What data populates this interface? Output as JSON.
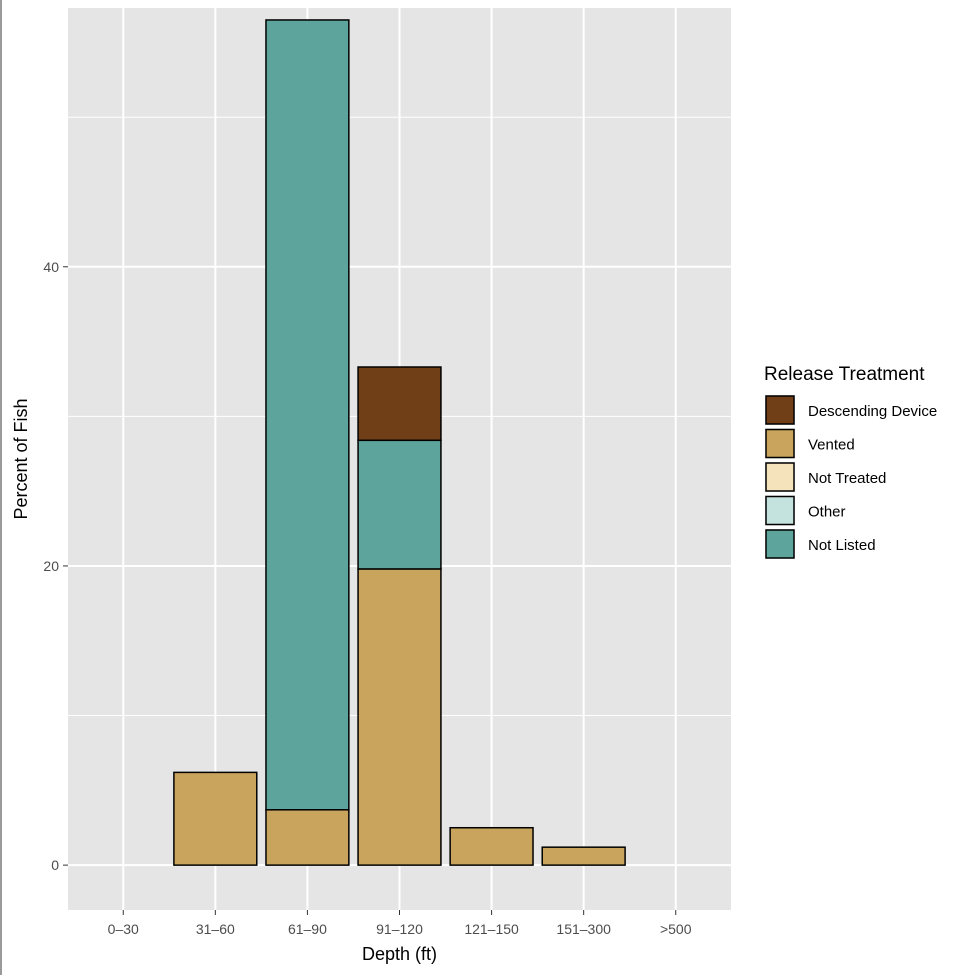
{
  "chart_data": {
    "type": "bar",
    "stacked": true,
    "title": "",
    "xlabel": "Depth (ft)",
    "ylabel": "Percent of Fish",
    "ylim": [
      -3,
      57.3
    ],
    "yticks": [
      0,
      20,
      40
    ],
    "categories": [
      "0–30",
      "31–60",
      "61–90",
      "91–120",
      "121–150",
      "151–300",
      ">500"
    ],
    "series": [
      {
        "name": "Vented",
        "color": "#C8A45C",
        "values": [
          0,
          6.2,
          3.7,
          19.8,
          2.5,
          1.2,
          0
        ]
      },
      {
        "name": "Not Treated",
        "color": "#F4E3BB",
        "values": [
          0,
          0,
          0,
          0,
          0,
          0,
          0
        ]
      },
      {
        "name": "Other",
        "color": "#C4E3DE",
        "values": [
          0,
          0,
          0,
          0,
          0,
          0,
          0
        ]
      },
      {
        "name": "Not Listed",
        "color": "#5DA59C",
        "values": [
          0,
          0,
          52.8,
          8.6,
          0,
          0,
          0
        ]
      },
      {
        "name": "Descending Device",
        "color": "#703F17",
        "values": [
          0,
          0,
          0,
          4.9,
          0,
          0,
          0
        ]
      }
    ],
    "legend": {
      "title": "Release Treatment",
      "position": "right",
      "entries": [
        {
          "label": "Descending Device",
          "color": "#703F17"
        },
        {
          "label": "Vented",
          "color": "#C8A45C"
        },
        {
          "label": "Not Treated",
          "color": "#F4E3BB"
        },
        {
          "label": "Other",
          "color": "#C4E3DE"
        },
        {
          "label": "Not Listed",
          "color": "#5DA59C"
        }
      ]
    },
    "panel_background": "#E5E5E5",
    "grid_color": "#FFFFFF",
    "bar_outline": "#000000",
    "grid": true
  }
}
